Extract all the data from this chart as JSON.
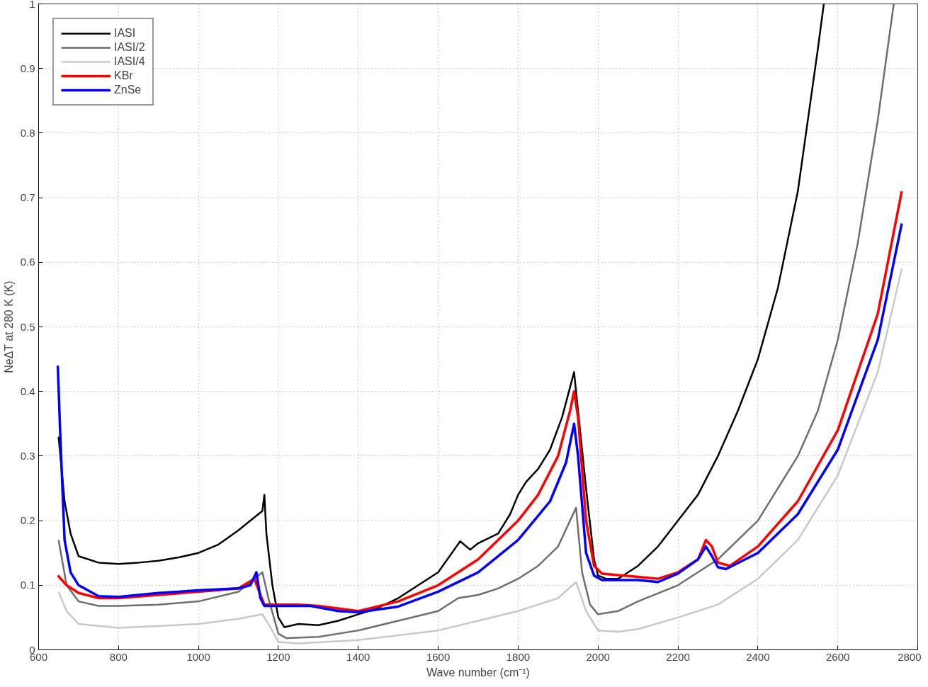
{
  "chart_data": {
    "type": "line",
    "xlabel": "Wave number (cm⁻¹)",
    "ylabel": "NeΔT at 280 K (K)",
    "xlim": [
      600,
      2800
    ],
    "ylim": [
      0,
      1
    ],
    "xticks": [
      600,
      800,
      1000,
      1200,
      1400,
      1600,
      1800,
      2000,
      2200,
      2400,
      2600,
      2800
    ],
    "yticks": [
      0,
      0.1,
      0.2,
      0.3,
      0.4,
      0.5,
      0.6,
      0.7,
      0.8,
      0.9,
      1
    ],
    "grid": true,
    "legend": "top left",
    "line_style": "solid",
    "marker": "none",
    "series": [
      {
        "name": "IASI",
        "color": "#000000",
        "x": [
          650,
          665,
          680,
          700,
          750,
          800,
          850,
          900,
          950,
          1000,
          1050,
          1100,
          1140,
          1160,
          1165,
          1170,
          1185,
          1200,
          1215,
          1250,
          1300,
          1350,
          1400,
          1450,
          1500,
          1550,
          1600,
          1640,
          1655,
          1680,
          1700,
          1750,
          1780,
          1800,
          1820,
          1850,
          1880,
          1910,
          1940,
          1950,
          1970,
          1990,
          2000,
          2020,
          2050,
          2100,
          2150,
          2200,
          2250,
          2300,
          2350,
          2400,
          2450,
          2500,
          2550,
          2565
        ],
        "values": [
          0.33,
          0.23,
          0.18,
          0.145,
          0.135,
          0.133,
          0.135,
          0.138,
          0.143,
          0.15,
          0.163,
          0.185,
          0.205,
          0.215,
          0.24,
          0.18,
          0.1,
          0.05,
          0.035,
          0.04,
          0.038,
          0.045,
          0.055,
          0.065,
          0.08,
          0.1,
          0.12,
          0.155,
          0.168,
          0.155,
          0.165,
          0.18,
          0.21,
          0.24,
          0.26,
          0.28,
          0.31,
          0.36,
          0.43,
          0.37,
          0.25,
          0.14,
          0.115,
          0.11,
          0.11,
          0.13,
          0.16,
          0.2,
          0.24,
          0.3,
          0.37,
          0.45,
          0.56,
          0.71,
          0.93,
          1.0
        ]
      },
      {
        "name": "IASI/2",
        "color": "#6e6e6e",
        "x": [
          650,
          670,
          700,
          750,
          800,
          900,
          1000,
          1100,
          1160,
          1175,
          1200,
          1220,
          1300,
          1400,
          1500,
          1600,
          1650,
          1700,
          1750,
          1800,
          1850,
          1900,
          1945,
          1960,
          1980,
          2000,
          2050,
          2100,
          2200,
          2300,
          2400,
          2500,
          2550,
          2600,
          2650,
          2700,
          2740
        ],
        "values": [
          0.17,
          0.1,
          0.075,
          0.068,
          0.068,
          0.07,
          0.075,
          0.09,
          0.12,
          0.08,
          0.025,
          0.018,
          0.02,
          0.03,
          0.045,
          0.06,
          0.08,
          0.085,
          0.095,
          0.11,
          0.13,
          0.16,
          0.22,
          0.12,
          0.07,
          0.055,
          0.06,
          0.075,
          0.1,
          0.14,
          0.2,
          0.3,
          0.37,
          0.48,
          0.63,
          0.82,
          1.0
        ]
      },
      {
        "name": "IASI/4",
        "color": "#c8c8c8",
        "x": [
          650,
          670,
          700,
          800,
          1000,
          1100,
          1160,
          1180,
          1200,
          1250,
          1400,
          1600,
          1700,
          1800,
          1900,
          1945,
          1970,
          2000,
          2050,
          2100,
          2200,
          2300,
          2400,
          2500,
          2600,
          2700,
          2760
        ],
        "values": [
          0.09,
          0.06,
          0.04,
          0.034,
          0.04,
          0.048,
          0.055,
          0.035,
          0.012,
          0.01,
          0.015,
          0.03,
          0.045,
          0.06,
          0.08,
          0.105,
          0.06,
          0.03,
          0.028,
          0.032,
          0.05,
          0.07,
          0.11,
          0.17,
          0.27,
          0.43,
          0.59
        ]
      },
      {
        "name": "KBr",
        "color": "#ff0000",
        "x": [
          648,
          670,
          700,
          750,
          800,
          900,
          1000,
          1100,
          1140,
          1155,
          1165,
          1200,
          1250,
          1300,
          1400,
          1500,
          1600,
          1700,
          1800,
          1850,
          1900,
          1930,
          1940,
          1950,
          1970,
          1990,
          2010,
          2100,
          2150,
          2200,
          2250,
          2270,
          2285,
          2300,
          2330,
          2400,
          2500,
          2600,
          2700,
          2760
        ],
        "values": [
          0.115,
          0.1,
          0.088,
          0.08,
          0.08,
          0.085,
          0.09,
          0.095,
          0.11,
          0.085,
          0.07,
          0.07,
          0.07,
          0.068,
          0.06,
          0.075,
          0.1,
          0.14,
          0.2,
          0.24,
          0.3,
          0.37,
          0.4,
          0.36,
          0.2,
          0.13,
          0.118,
          0.113,
          0.11,
          0.12,
          0.14,
          0.17,
          0.16,
          0.135,
          0.13,
          0.16,
          0.23,
          0.34,
          0.52,
          0.71
        ]
      },
      {
        "name": "ZnSe",
        "color": "#0000ff",
        "x": [
          648,
          655,
          665,
          680,
          700,
          750,
          800,
          900,
          1000,
          1100,
          1130,
          1145,
          1155,
          1165,
          1200,
          1280,
          1350,
          1400,
          1500,
          1600,
          1700,
          1800,
          1880,
          1920,
          1940,
          1950,
          1970,
          1990,
          2010,
          2100,
          2150,
          2200,
          2250,
          2270,
          2285,
          2300,
          2320,
          2400,
          2500,
          2600,
          2700,
          2760
        ],
        "values": [
          0.44,
          0.32,
          0.17,
          0.12,
          0.1,
          0.083,
          0.082,
          0.088,
          0.092,
          0.095,
          0.1,
          0.12,
          0.08,
          0.068,
          0.068,
          0.068,
          0.06,
          0.058,
          0.067,
          0.09,
          0.12,
          0.17,
          0.23,
          0.29,
          0.35,
          0.3,
          0.15,
          0.115,
          0.108,
          0.108,
          0.105,
          0.118,
          0.14,
          0.16,
          0.145,
          0.128,
          0.125,
          0.15,
          0.21,
          0.31,
          0.48,
          0.66
        ]
      }
    ]
  }
}
